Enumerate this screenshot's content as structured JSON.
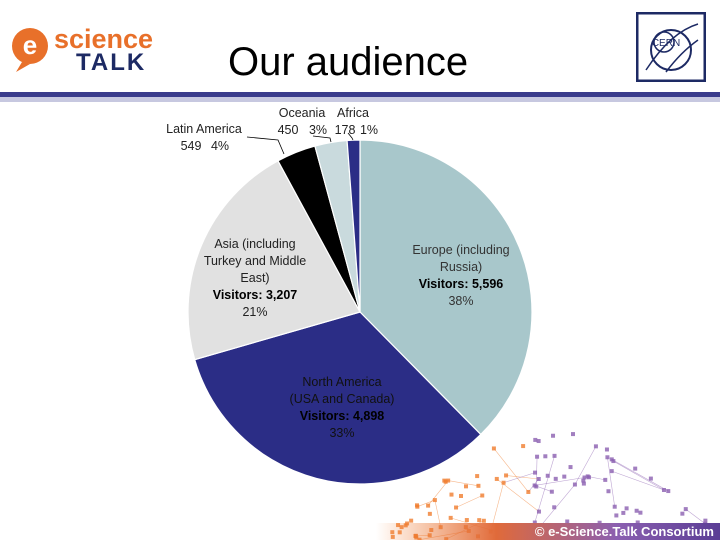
{
  "header": {
    "logo_line1": "science",
    "logo_line2": "TALK",
    "logo_mark": "e",
    "title": "Our audience",
    "cern_logo_text": "CERN"
  },
  "footer": {
    "text": "© e-Science.Talk Consortium"
  },
  "colors": {
    "europe": "#a8c7cb",
    "north_america": "#2b2d86",
    "asia": "#e1e1e1",
    "latin_america": "#000000",
    "oceania": "#c9dadd",
    "africa": "#2b2d86",
    "rule_dark": "#3a3c8c",
    "rule_light": "#c7c8e0",
    "logo_orange": "#e8702a",
    "logo_navy": "#1d2a64",
    "network_orange": "#f07d2e",
    "network_purple": "#8b5fb0"
  },
  "chart_data": {
    "type": "pie",
    "start": "12 o'clock, clockwise",
    "slices": [
      {
        "key": "europe",
        "label_lines": [
          "Europe (including",
          "Russia)"
        ],
        "visitors_text": "Visitors: 5,596",
        "value": 5596,
        "percent": "38%"
      },
      {
        "key": "north_america",
        "label_lines": [
          "North America",
          "(USA and Canada)"
        ],
        "visitors_text": "Visitors: 4,898",
        "value": 4898,
        "percent": "33%"
      },
      {
        "key": "asia",
        "label_lines": [
          "Asia (including",
          "Turkey and Middle",
          "East)"
        ],
        "visitors_text": "Visitors: 3,207",
        "value": 3207,
        "percent": "21%"
      },
      {
        "key": "latin_america",
        "label_lines": [
          "Latin America"
        ],
        "visitors_text": "549",
        "value": 549,
        "percent": "4%"
      },
      {
        "key": "oceania",
        "label_lines": [
          "Oceania"
        ],
        "visitors_text": "450",
        "value": 450,
        "percent": "3%"
      },
      {
        "key": "africa",
        "label_lines": [
          "Africa"
        ],
        "visitors_text": "178",
        "value": 178,
        "percent": "1%"
      }
    ]
  }
}
